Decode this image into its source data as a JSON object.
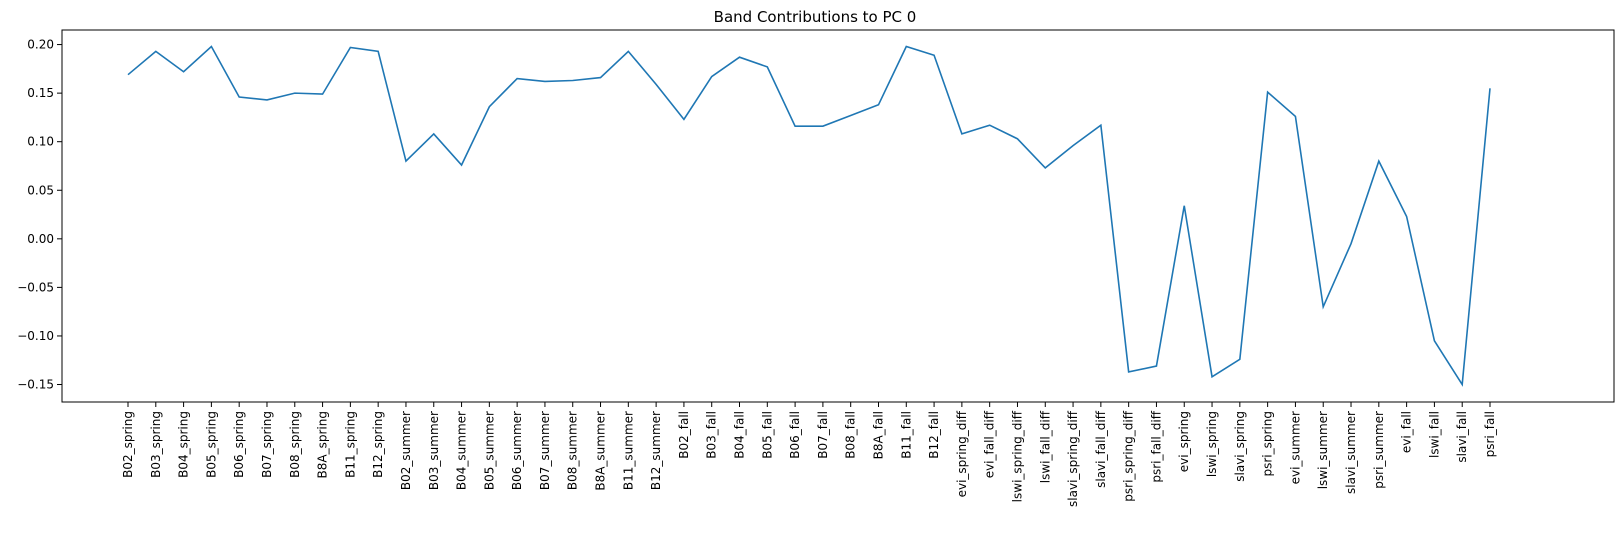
{
  "chart_data": {
    "type": "line",
    "title": "Band Contributions to PC 0",
    "xlabel": "",
    "ylabel": "",
    "ylim": [
      -0.168,
      0.215
    ],
    "yticks": [
      -0.15,
      -0.1,
      -0.05,
      0.0,
      0.05,
      0.1,
      0.15,
      0.2
    ],
    "ytick_labels": [
      "−0.15",
      "−0.10",
      "−0.05",
      "0.00",
      "0.05",
      "0.10",
      "0.15",
      "0.20"
    ],
    "grid": false,
    "legend": "none",
    "color": "#1f77b4",
    "categories": [
      "B02_spring",
      "B03_spring",
      "B04_spring",
      "B05_spring",
      "B06_spring",
      "B07_spring",
      "B08_spring",
      "B8A_spring",
      "B11_spring",
      "B12_spring",
      "B02_summer",
      "B03_summer",
      "B04_summer",
      "B05_summer",
      "B06_summer",
      "B07_summer",
      "B08_summer",
      "B8A_summer",
      "B11_summer",
      "B12_summer",
      "B02_fall",
      "B03_fall",
      "B04_fall",
      "B05_fall",
      "B06_fall",
      "B07_fall",
      "B08_fall",
      "B8A_fall",
      "B11_fall",
      "B12_fall",
      "evi_spring_diff",
      "evi_fall_diff",
      "lswi_spring_diff",
      "lswi_fall_diff",
      "slavi_spring_diff",
      "slavi_fall_diff",
      "psri_spring_diff",
      "psri_fall_diff",
      "evi_spring",
      "lswi_spring",
      "slavi_spring",
      "psri_spring",
      "evi_summer",
      "lswi_summer",
      "slavi_summer",
      "psri_summer",
      "evi_fall",
      "lswi_fall",
      "slavi_fall",
      "psri_fall"
    ],
    "values": [
      0.169,
      0.193,
      0.172,
      0.198,
      0.146,
      0.143,
      0.15,
      0.149,
      0.197,
      0.193,
      0.08,
      0.108,
      0.076,
      0.136,
      0.165,
      0.162,
      0.163,
      0.166,
      0.193,
      0.159,
      0.123,
      0.167,
      0.187,
      0.177,
      0.116,
      0.116,
      0.127,
      0.138,
      0.198,
      0.189,
      0.108,
      0.117,
      0.103,
      0.073,
      0.096,
      0.117,
      -0.137,
      -0.131,
      0.034,
      -0.142,
      -0.124,
      0.151,
      0.126,
      -0.07,
      -0.005,
      0.08,
      0.023,
      -0.105,
      -0.15,
      0.155
    ]
  }
}
